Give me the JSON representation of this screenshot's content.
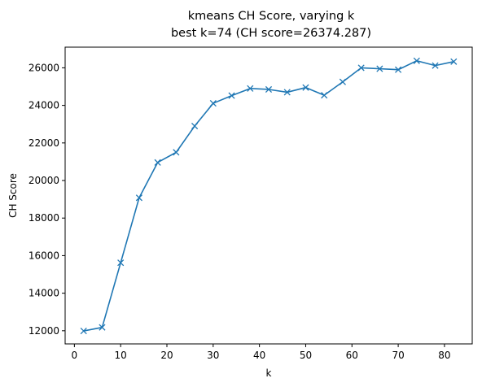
{
  "chart_data": {
    "type": "line",
    "title": "kmeans CH Score, varying k",
    "subtitle": "best k=74 (CH score=26374.287)",
    "xlabel": "k",
    "ylabel": "CH Score",
    "xlim": [
      -2.0,
      86.0
    ],
    "ylim": [
      11300,
      27100
    ],
    "xticks": [
      0,
      10,
      20,
      30,
      40,
      50,
      60,
      70,
      80
    ],
    "yticks": [
      12000,
      14000,
      16000,
      18000,
      20000,
      22000,
      24000,
      26000
    ],
    "grid": false,
    "marker": "x",
    "line_color": "#1f77b4",
    "series": [
      {
        "x": [
          2,
          6,
          10,
          14,
          18,
          22,
          26,
          30,
          34,
          38,
          42,
          46,
          50,
          54,
          58,
          62,
          66,
          70,
          74,
          78,
          82
        ],
        "values": [
          11990,
          12180,
          15620,
          19080,
          20960,
          21500,
          22900,
          24110,
          24520,
          24900,
          24850,
          24700,
          24950,
          24540,
          25250,
          26000,
          25950,
          25900,
          26374,
          26120,
          26330
        ]
      }
    ]
  }
}
